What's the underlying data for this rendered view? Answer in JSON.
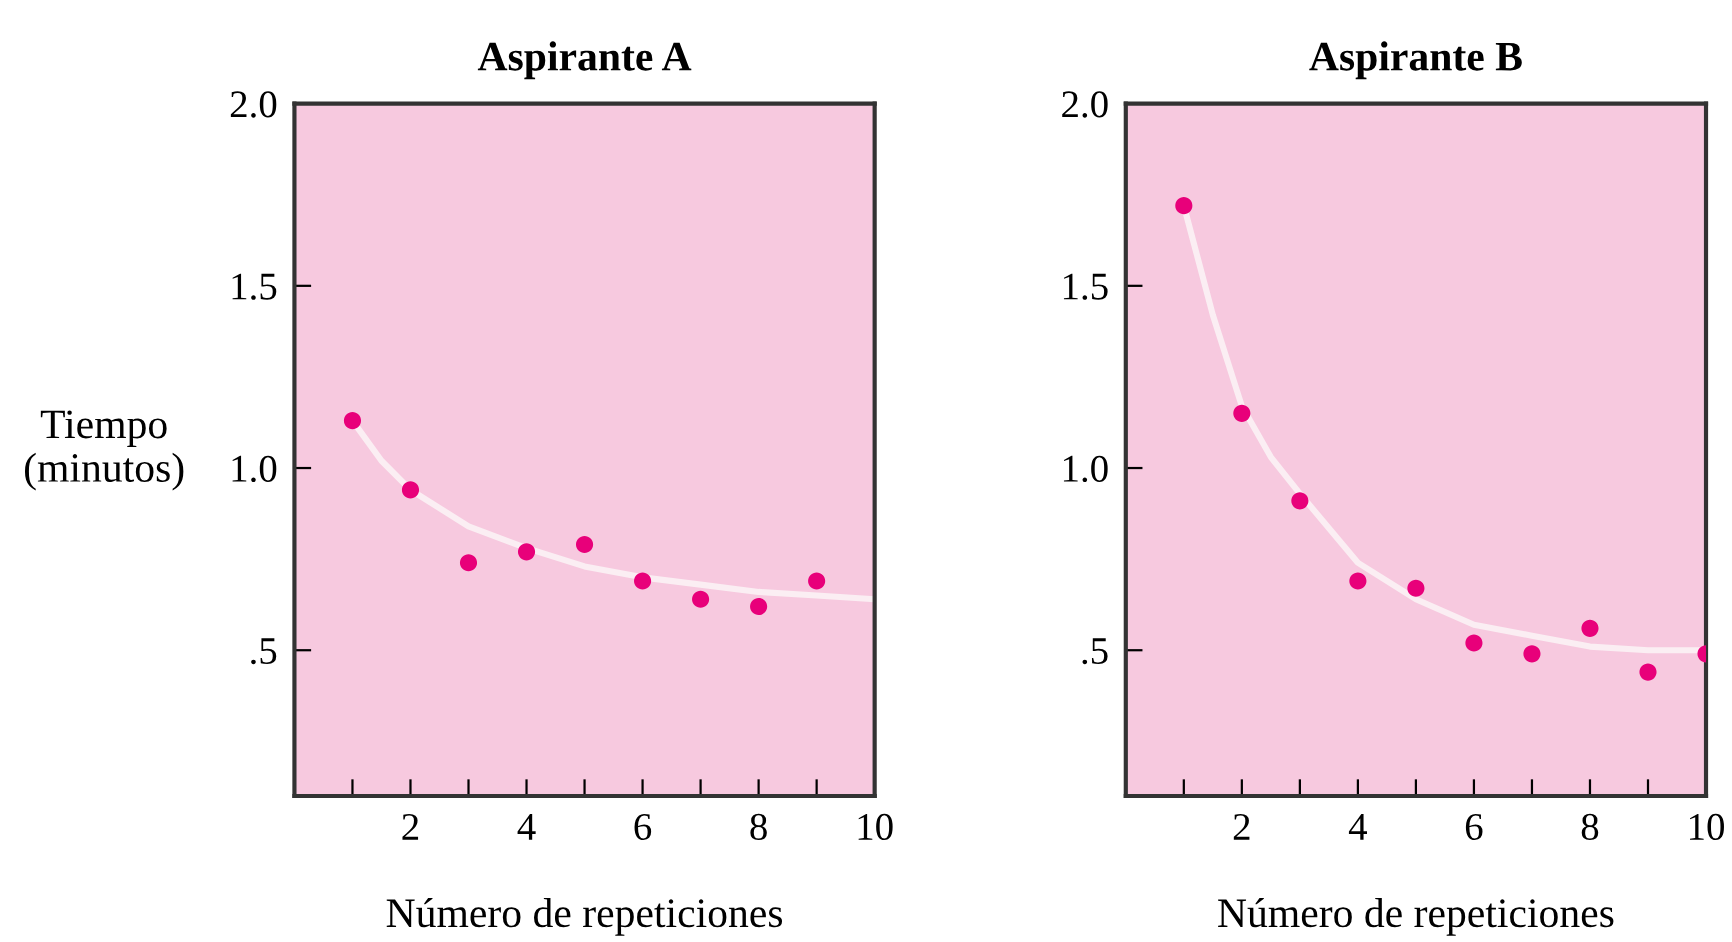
{
  "chart_data": [
    {
      "type": "scatter",
      "title": "Aspirante A",
      "xlabel": "Número de repeticiones",
      "ylabel": "Tiempo\n(minutos)",
      "xlim": [
        0,
        10
      ],
      "ylim": [
        0.1,
        2.0
      ],
      "xticks": [
        {
          "value": 1,
          "label": null
        },
        2,
        {
          "value": 3,
          "label": null
        },
        4,
        {
          "value": 5,
          "label": null
        },
        6,
        {
          "value": 7,
          "label": null
        },
        8,
        {
          "value": 9,
          "label": null
        },
        10
      ],
      "yticks": [
        {
          "value": 0.5,
          "label": ".5"
        },
        {
          "value": 1.0,
          "label": "1.0"
        },
        {
          "value": 1.5,
          "label": "1.5"
        },
        {
          "value": 2.0,
          "label": "2.0"
        }
      ],
      "grid": false,
      "series": [
        {
          "type": "line",
          "marker": "none",
          "color": "#fbeef3",
          "x": [
            1,
            1.5,
            2,
            3,
            4,
            5,
            6,
            7,
            8,
            9,
            10
          ],
          "values": [
            1.13,
            1.02,
            0.94,
            0.84,
            0.78,
            0.73,
            0.7,
            0.68,
            0.66,
            0.65,
            0.64
          ]
        },
        {
          "marker": "circle",
          "color": "#e8007a",
          "x": [
            1,
            2,
            3,
            4,
            5,
            6,
            7,
            8,
            9
          ],
          "values": [
            1.13,
            0.94,
            0.74,
            0.77,
            0.79,
            0.69,
            0.64,
            0.62,
            0.69
          ]
        }
      ]
    },
    {
      "type": "scatter",
      "title": "Aspirante B",
      "xlabel": "Número de repeticiones",
      "xlim": [
        0,
        10
      ],
      "ylim": [
        0.1,
        2.0
      ],
      "xticks": [
        {
          "value": 1,
          "label": null
        },
        2,
        {
          "value": 3,
          "label": null
        },
        4,
        {
          "value": 5,
          "label": null
        },
        6,
        {
          "value": 7,
          "label": null
        },
        8,
        {
          "value": 9,
          "label": null
        },
        10
      ],
      "yticks": [
        {
          "value": 0.5,
          "label": ".5"
        },
        {
          "value": 1.0,
          "label": "1.0"
        },
        {
          "value": 1.5,
          "label": "1.5"
        },
        {
          "value": 2.0,
          "label": "2.0"
        }
      ],
      "grid": false,
      "series": [
        {
          "type": "line",
          "marker": "none",
          "color": "#fbeef3",
          "x": [
            1,
            1.5,
            2,
            2.5,
            3,
            4,
            5,
            6,
            7,
            8,
            9,
            10
          ],
          "values": [
            1.72,
            1.42,
            1.17,
            1.03,
            0.93,
            0.74,
            0.64,
            0.57,
            0.54,
            0.51,
            0.5,
            0.5
          ]
        },
        {
          "marker": "circle",
          "color": "#e8007a",
          "x": [
            1,
            2,
            3,
            4,
            5,
            6,
            7,
            8,
            9,
            10
          ],
          "values": [
            1.72,
            1.15,
            0.91,
            0.69,
            0.67,
            0.52,
            0.49,
            0.56,
            0.44,
            0.49
          ]
        }
      ]
    }
  ]
}
